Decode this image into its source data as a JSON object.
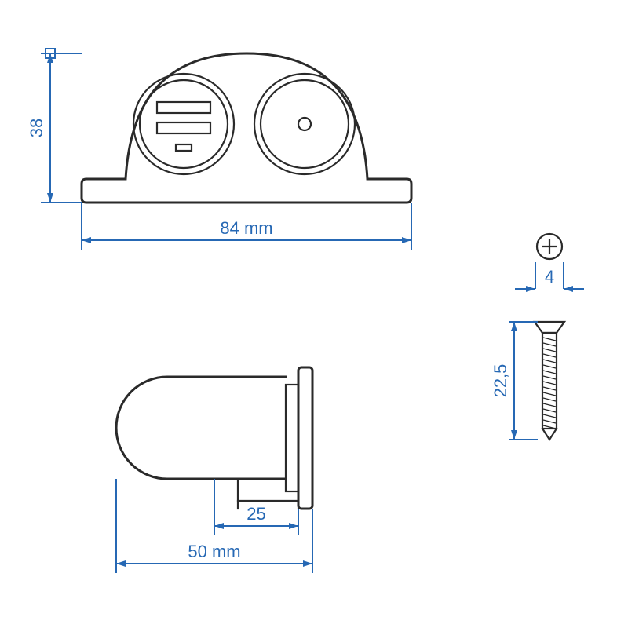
{
  "colors": {
    "outline": "#2a2a2a",
    "dimension": "#2668b4",
    "background": "#ffffff"
  },
  "units": "mm",
  "views": {
    "front": {
      "width_mm": 84,
      "height_mm": 38,
      "labels": {
        "width": "84 mm",
        "height": "38"
      }
    },
    "side": {
      "depth_mm": 50,
      "inner_mm": 25,
      "labels": {
        "depth": "50 mm",
        "inner": "25"
      }
    },
    "screw": {
      "head_diameter_mm": 4,
      "shaft_length_mm": 22.5,
      "labels": {
        "head": "4",
        "shaft": "22,5"
      }
    }
  },
  "arrow": {
    "length": 12,
    "half_width": 4
  }
}
